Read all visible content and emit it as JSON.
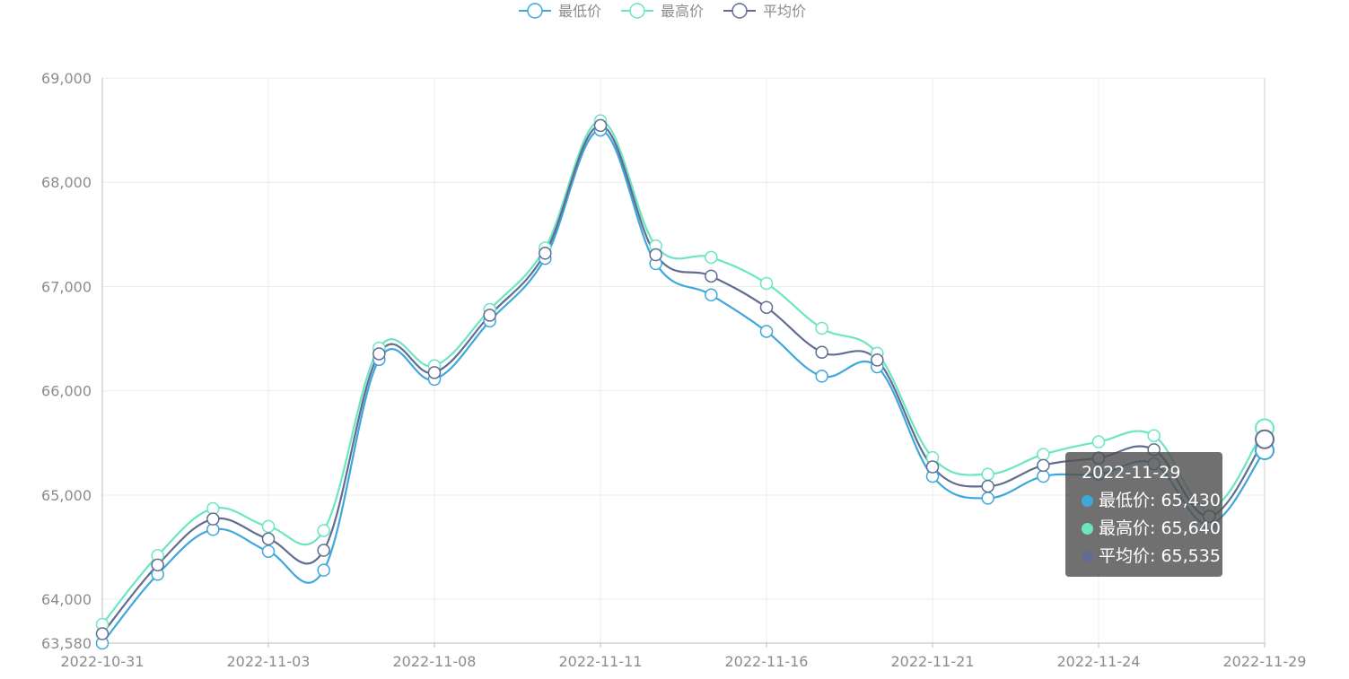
{
  "chart_data": {
    "type": "line",
    "smooth": true,
    "title": "",
    "xlabel": "",
    "ylabel": "",
    "ylim": [
      63580,
      69000
    ],
    "y_ticks": [
      "63,580",
      "64,000",
      "65,000",
      "66,000",
      "67,000",
      "68,000",
      "69,000"
    ],
    "y_tick_values": [
      63580,
      64000,
      65000,
      66000,
      67000,
      68000,
      69000
    ],
    "x_ticks": [
      "2022-10-31",
      "2022-11-03",
      "2022-11-08",
      "2022-11-11",
      "2022-11-16",
      "2022-11-21",
      "2022-11-24",
      "2022-11-29"
    ],
    "x_tick_indices": [
      0,
      3,
      6,
      9,
      12,
      15,
      18,
      21
    ],
    "grid": true,
    "legend_position": "top-center",
    "x": [
      "2022-10-31",
      "2022-11-01",
      "2022-11-02",
      "2022-11-03",
      "2022-11-04",
      "2022-11-07",
      "2022-11-08",
      "2022-11-09",
      "2022-11-10",
      "2022-11-11",
      "2022-11-14",
      "2022-11-15",
      "2022-11-16",
      "2022-11-17",
      "2022-11-18",
      "2022-11-21",
      "2022-11-22",
      "2022-11-23",
      "2022-11-24",
      "2022-11-25",
      "2022-11-28",
      "2022-11-29"
    ],
    "series": [
      {
        "name": "最低价",
        "color": "#3fa7dc",
        "values": [
          63580,
          64240,
          64670,
          64460,
          64280,
          66300,
          66110,
          66670,
          67270,
          68500,
          67220,
          66920,
          66570,
          66140,
          66230,
          65180,
          64970,
          65180,
          65200,
          65300,
          64720,
          65430
        ]
      },
      {
        "name": "最高价",
        "color": "#6be6c1",
        "values": [
          63760,
          64420,
          64870,
          64700,
          64660,
          66410,
          66240,
          66780,
          67370,
          68590,
          67390,
          67280,
          67030,
          66600,
          66360,
          65360,
          65200,
          65390,
          65510,
          65570,
          64870,
          65640
        ]
      },
      {
        "name": "平均价",
        "color": "#626c91",
        "values": [
          63670,
          64330,
          64770,
          64580,
          64470,
          66355,
          66175,
          66725,
          67320,
          68545,
          67305,
          67100,
          66800,
          66370,
          66295,
          65270,
          65085,
          65285,
          65355,
          65435,
          64795,
          65535
        ]
      }
    ]
  },
  "tooltip": {
    "title": "2022-11-29",
    "active_index": 21,
    "rows": [
      {
        "text": "最低价: 65,430",
        "color": "#3fa7dc"
      },
      {
        "text": "最高价: 65,640",
        "color": "#6be6c1"
      },
      {
        "text": "平均价: 65,535",
        "color": "#626c91"
      }
    ]
  }
}
